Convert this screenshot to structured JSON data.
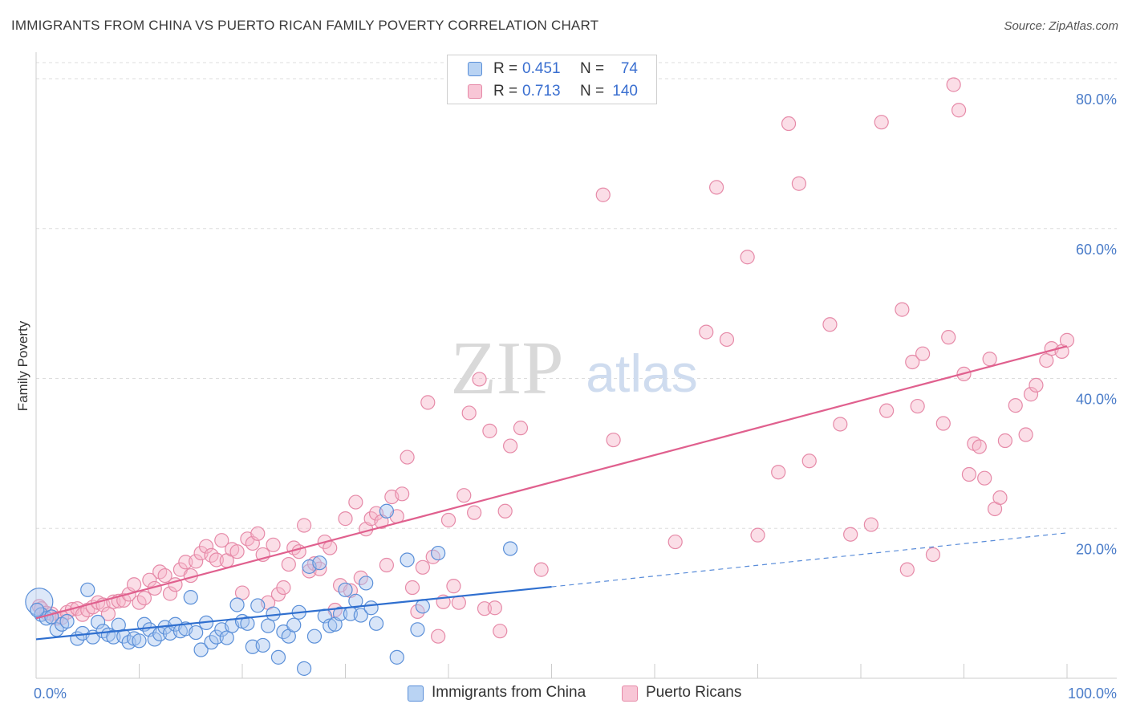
{
  "title": "IMMIGRANTS FROM CHINA VS PUERTO RICAN FAMILY POVERTY CORRELATION CHART",
  "source": "Source: ZipAtlas.com",
  "watermark": {
    "zip": "ZIP",
    "atlas": "atlas"
  },
  "legend_top": [
    {
      "r_label": "R =",
      "r_value": "0.451",
      "n_label": "N =",
      "n_value": "74"
    },
    {
      "r_label": "R =",
      "r_value": "0.713",
      "n_label": "N =",
      "n_value": "140"
    }
  ],
  "legend_bottom": [
    "Immigrants from China",
    "Puerto Ricans"
  ],
  "colors": {
    "blue_fill": "#a9c6ef",
    "blue_stroke": "#5a8fd8",
    "blue_line": "#2f6fcf",
    "pink_fill": "#f6b6ca",
    "pink_stroke": "#e68aa8",
    "pink_line": "#e0608e",
    "tick_text": "#4a7cc9",
    "grid": "#dddddd"
  },
  "chart_data": {
    "type": "scatter",
    "title": "IMMIGRANTS FROM CHINA VS PUERTO RICAN FAMILY POVERTY CORRELATION CHART",
    "xlabel": "",
    "ylabel": "Family Poverty",
    "xlim": [
      0,
      100
    ],
    "ylim": [
      0,
      83
    ],
    "x_tick_labels": [
      "0.0%",
      "100.0%"
    ],
    "y_tick_labels": [
      {
        "value": 20,
        "label": "20.0%"
      },
      {
        "value": 40,
        "label": "40.0%"
      },
      {
        "value": 60,
        "label": "60.0%"
      },
      {
        "value": 80,
        "label": "80.0%"
      }
    ],
    "grid": "horizontal dashed",
    "series": [
      {
        "name": "Immigrants from China",
        "color": "#5a8fd8",
        "r": 0.451,
        "n": 74,
        "trend": {
          "x0": 0,
          "y0": 5.2,
          "x1": 50,
          "y1": 12.2,
          "dashed_to_x": 100,
          "dashed_to_y": 19.4
        },
        "points": [
          [
            0.3,
            10.2
          ],
          [
            0.5,
            8.5
          ],
          [
            1,
            8
          ],
          [
            1.5,
            8.2
          ],
          [
            2,
            6.5
          ],
          [
            2.5,
            7.2
          ],
          [
            3,
            7.6
          ],
          [
            4,
            5.3
          ],
          [
            4.5,
            6
          ],
          [
            5,
            11.8
          ],
          [
            5.5,
            5.5
          ],
          [
            6,
            7.5
          ],
          [
            6.5,
            6.3
          ],
          [
            7,
            5.8
          ],
          [
            7.5,
            5.5
          ],
          [
            8,
            7.1
          ],
          [
            8.5,
            5.6
          ],
          [
            9,
            4.8
          ],
          [
            9.5,
            5.3
          ],
          [
            10,
            5
          ],
          [
            10.5,
            7.2
          ],
          [
            11,
            6.5
          ],
          [
            11.5,
            5.2
          ],
          [
            12,
            5.9
          ],
          [
            12.5,
            6.8
          ],
          [
            13,
            6
          ],
          [
            13.5,
            7.2
          ],
          [
            14,
            6.3
          ],
          [
            14.5,
            6.6
          ],
          [
            15,
            10.8
          ],
          [
            15.5,
            6.1
          ],
          [
            16,
            3.8
          ],
          [
            16.5,
            7.4
          ],
          [
            17,
            4.8
          ],
          [
            17.5,
            5.5
          ],
          [
            18,
            6.5
          ],
          [
            18.5,
            5.4
          ],
          [
            19,
            7
          ],
          [
            19.5,
            9.8
          ],
          [
            20,
            7.6
          ],
          [
            20.5,
            7.3
          ],
          [
            21,
            4.2
          ],
          [
            21.5,
            9.7
          ],
          [
            22,
            4.4
          ],
          [
            22.5,
            7
          ],
          [
            23,
            8.6
          ],
          [
            23.5,
            2.8
          ],
          [
            24,
            6.2
          ],
          [
            24.5,
            5.6
          ],
          [
            25,
            7.1
          ],
          [
            25.5,
            8.8
          ],
          [
            26,
            1.3
          ],
          [
            26.5,
            14.9
          ],
          [
            27,
            5.6
          ],
          [
            27.5,
            15.4
          ],
          [
            28,
            8.3
          ],
          [
            28.5,
            7
          ],
          [
            29,
            7.2
          ],
          [
            29.5,
            8.6
          ],
          [
            30,
            11.8
          ],
          [
            30.5,
            8.6
          ],
          [
            31,
            10.3
          ],
          [
            31.5,
            8.4
          ],
          [
            32,
            12.7
          ],
          [
            32.5,
            9.4
          ],
          [
            33,
            7.3
          ],
          [
            34,
            22.3
          ],
          [
            35,
            2.8
          ],
          [
            36,
            15.8
          ],
          [
            37,
            6.5
          ],
          [
            37.5,
            9.6
          ],
          [
            39,
            16.7
          ],
          [
            46,
            17.3
          ],
          [
            0.1,
            9.1
          ]
        ]
      },
      {
        "name": "Puerto Ricans",
        "color": "#e68aa8",
        "r": 0.713,
        "n": 140,
        "trend": {
          "x0": 0,
          "y0": 8,
          "x1": 100,
          "y1": 44.3
        },
        "points": [
          [
            0.3,
            9.6
          ],
          [
            0.5,
            9.3
          ],
          [
            1,
            8.7
          ],
          [
            1.5,
            8.6
          ],
          [
            2,
            8
          ],
          [
            2.5,
            8.1
          ],
          [
            3,
            8.8
          ],
          [
            3.5,
            9.2
          ],
          [
            4,
            9.3
          ],
          [
            4.5,
            8.5
          ],
          [
            5,
            9.1
          ],
          [
            5.5,
            9.5
          ],
          [
            6,
            10.1
          ],
          [
            6.5,
            9.8
          ],
          [
            7,
            8.6
          ],
          [
            7.5,
            10.2
          ],
          [
            8,
            10.3
          ],
          [
            8.5,
            10.4
          ],
          [
            9,
            11.2
          ],
          [
            9.5,
            12.5
          ],
          [
            10,
            10.1
          ],
          [
            10.5,
            10.7
          ],
          [
            11,
            13.1
          ],
          [
            11.5,
            12
          ],
          [
            12,
            14.2
          ],
          [
            12.5,
            13.7
          ],
          [
            13,
            11.3
          ],
          [
            13.5,
            12.5
          ],
          [
            14,
            14.5
          ],
          [
            14.5,
            15.5
          ],
          [
            15,
            13.7
          ],
          [
            15.5,
            15.6
          ],
          [
            16,
            16.7
          ],
          [
            16.5,
            17.6
          ],
          [
            17,
            16.4
          ],
          [
            17.5,
            15.8
          ],
          [
            18,
            18.4
          ],
          [
            18.5,
            15.7
          ],
          [
            19,
            17.2
          ],
          [
            19.5,
            16.9
          ],
          [
            20,
            11.4
          ],
          [
            20.5,
            18.6
          ],
          [
            21,
            18
          ],
          [
            21.5,
            19.3
          ],
          [
            22,
            16.5
          ],
          [
            22.5,
            10.1
          ],
          [
            23,
            17.8
          ],
          [
            23.5,
            11.2
          ],
          [
            24,
            12.1
          ],
          [
            24.5,
            15.2
          ],
          [
            25,
            17.4
          ],
          [
            25.5,
            16.9
          ],
          [
            26,
            20.4
          ],
          [
            26.5,
            14.3
          ],
          [
            27,
            15.3
          ],
          [
            27.5,
            14.6
          ],
          [
            28,
            18.2
          ],
          [
            28.5,
            17.4
          ],
          [
            29,
            9.1
          ],
          [
            29.5,
            12.4
          ],
          [
            30,
            21.3
          ],
          [
            30.5,
            11.7
          ],
          [
            31,
            23.5
          ],
          [
            31.5,
            13.4
          ],
          [
            32,
            19.9
          ],
          [
            32.5,
            21.3
          ],
          [
            33,
            22
          ],
          [
            33.5,
            20.9
          ],
          [
            34,
            15.1
          ],
          [
            34.5,
            24.2
          ],
          [
            35,
            21.6
          ],
          [
            35.5,
            24.6
          ],
          [
            36,
            29.5
          ],
          [
            36.5,
            12.1
          ],
          [
            37,
            8.9
          ],
          [
            37.5,
            14.8
          ],
          [
            38,
            36.8
          ],
          [
            38.5,
            16.2
          ],
          [
            39,
            5.6
          ],
          [
            39.5,
            10.2
          ],
          [
            40,
            21.1
          ],
          [
            40.5,
            12.3
          ],
          [
            41,
            10.1
          ],
          [
            41.5,
            24.4
          ],
          [
            42,
            35.4
          ],
          [
            42.5,
            22.1
          ],
          [
            43,
            39.9
          ],
          [
            43.5,
            9.3
          ],
          [
            44,
            33
          ],
          [
            44.5,
            9.4
          ],
          [
            45,
            6.3
          ],
          [
            45.5,
            22.3
          ],
          [
            46,
            31
          ],
          [
            47,
            33.4
          ],
          [
            49,
            14.5
          ],
          [
            55,
            64.5
          ],
          [
            56,
            31.8
          ],
          [
            62,
            18.2
          ],
          [
            65,
            46.2
          ],
          [
            66,
            65.5
          ],
          [
            67,
            45.2
          ],
          [
            69,
            56.2
          ],
          [
            70,
            19.1
          ],
          [
            72,
            27.5
          ],
          [
            73,
            74
          ],
          [
            74,
            66
          ],
          [
            75,
            29
          ],
          [
            77,
            47.2
          ],
          [
            78,
            33.9
          ],
          [
            79,
            19.2
          ],
          [
            81,
            20.5
          ],
          [
            82,
            74.2
          ],
          [
            82.5,
            35.7
          ],
          [
            84,
            49.2
          ],
          [
            84.5,
            14.5
          ],
          [
            85,
            42.2
          ],
          [
            85.5,
            36.3
          ],
          [
            86,
            43.3
          ],
          [
            87,
            16.5
          ],
          [
            88,
            34
          ],
          [
            88.5,
            45.5
          ],
          [
            89,
            79.2
          ],
          [
            89.5,
            75.8
          ],
          [
            90,
            40.6
          ],
          [
            90.5,
            27.2
          ],
          [
            91,
            31.3
          ],
          [
            91.5,
            30.9
          ],
          [
            92,
            26.7
          ],
          [
            92.5,
            42.6
          ],
          [
            93,
            22.6
          ],
          [
            93.5,
            24.1
          ],
          [
            94,
            31.7
          ],
          [
            95,
            36.4
          ],
          [
            96,
            32.5
          ],
          [
            96.5,
            37.9
          ],
          [
            97,
            39.1
          ],
          [
            98,
            42.4
          ],
          [
            98.5,
            44
          ],
          [
            99.5,
            43.6
          ],
          [
            100,
            45.1
          ]
        ]
      }
    ]
  }
}
